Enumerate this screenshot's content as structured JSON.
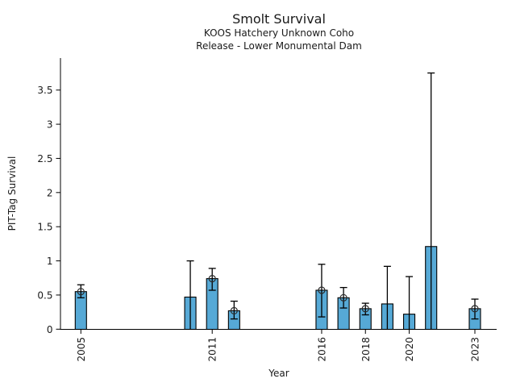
{
  "figure": {
    "background": "#ffffff",
    "text_color": "#1a1a1a"
  },
  "chart_data": {
    "type": "bar",
    "title": "Smolt Survival",
    "subtitle1": "KOOS Hatchery Unknown Coho",
    "subtitle2": "Release - Lower Monumental Dam",
    "xlabel": "Year",
    "ylabel": "PIT-Tag Survival",
    "grid": false,
    "legend": "none",
    "bar_color": "#56a9d6",
    "bar_edge_color": "#000000",
    "errorbar_color": "#000000",
    "ylim": [
      0,
      3.85
    ],
    "xlim": [
      2004,
      2024.2
    ],
    "yticks": [
      0,
      0.5,
      1,
      1.5,
      2,
      2.5,
      3,
      3.5
    ],
    "ytick_labels": [
      "0",
      "0.5",
      "1",
      "1.5",
      "2",
      "2.5",
      "3",
      "3.5"
    ],
    "xtick_years": [
      2005,
      2011,
      2016,
      2018,
      2020,
      2023
    ],
    "xtick_labels": [
      "2005",
      "2011",
      "2016",
      "2018",
      "2020",
      "2023"
    ],
    "series": [
      {
        "year": 2005,
        "value": 0.55,
        "ci_low": 0.46,
        "ci_high": 0.65,
        "marker": true
      },
      {
        "year": 2010,
        "value": 0.47,
        "ci_low": 0.0,
        "ci_high": 1.0,
        "marker": false
      },
      {
        "year": 2011,
        "value": 0.74,
        "ci_low": 0.57,
        "ci_high": 0.89,
        "marker": true
      },
      {
        "year": 2012,
        "value": 0.27,
        "ci_low": 0.15,
        "ci_high": 0.41,
        "marker": true
      },
      {
        "year": 2016,
        "value": 0.57,
        "ci_low": 0.18,
        "ci_high": 0.95,
        "marker": true
      },
      {
        "year": 2017,
        "value": 0.46,
        "ci_low": 0.31,
        "ci_high": 0.61,
        "marker": true
      },
      {
        "year": 2018,
        "value": 0.3,
        "ci_low": 0.21,
        "ci_high": 0.38,
        "marker": true
      },
      {
        "year": 2019,
        "value": 0.37,
        "ci_low": 0.0,
        "ci_high": 0.92,
        "marker": false
      },
      {
        "year": 2020,
        "value": 0.22,
        "ci_low": 0.0,
        "ci_high": 0.77,
        "marker": false
      },
      {
        "year": 2021,
        "value": 1.21,
        "ci_low": 0.0,
        "ci_high": 3.75,
        "marker": false
      },
      {
        "year": 2023,
        "value": 0.3,
        "ci_low": 0.15,
        "ci_high": 0.44,
        "marker": true
      }
    ]
  }
}
